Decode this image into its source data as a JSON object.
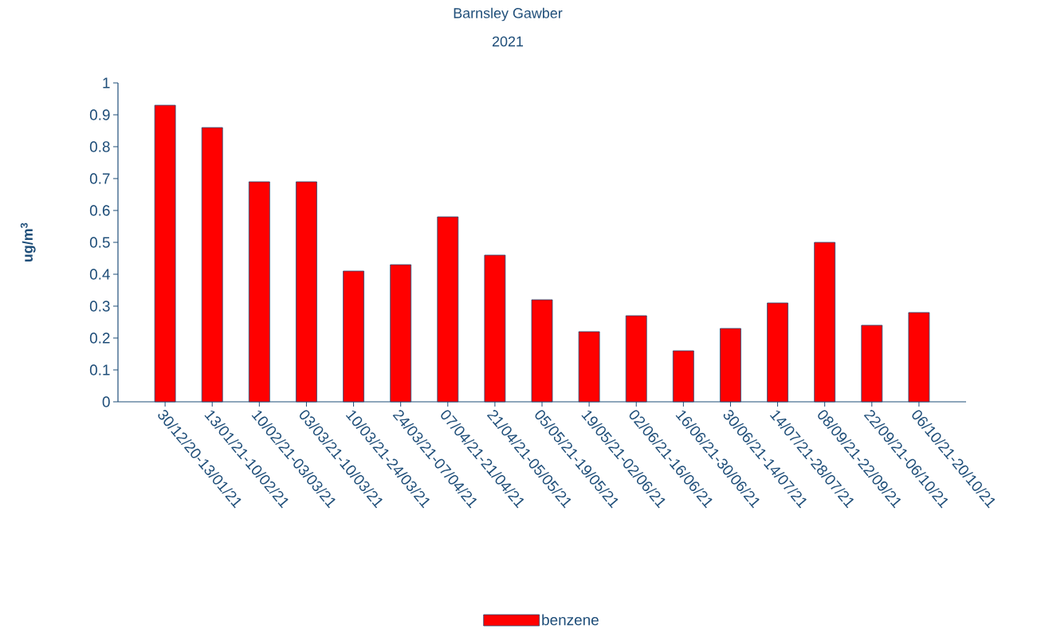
{
  "chart_data": {
    "type": "bar",
    "title": "Barnsley Gawber",
    "subtitle": "2021",
    "ylabel": "ug/m$^{3}$",
    "categories": [
      "30/12/20-13/01/21",
      "13/01/21-10/02/21",
      "10/02/21-03/03/21",
      "03/03/21-10/03/21",
      "10/03/21-24/03/21",
      "24/03/21-07/04/21",
      "07/04/21-21/04/21",
      "21/04/21-05/05/21",
      "05/05/21-19/05/21",
      "19/05/21-02/06/21",
      "02/06/21-16/06/21",
      "16/06/21-30/06/21",
      "30/06/21-14/07/21",
      "14/07/21-28/07/21",
      "08/09/21-22/09/21",
      "22/09/21-06/10/21",
      "06/10/21-20/10/21"
    ],
    "series": [
      {
        "name": "benzene",
        "color": "#ff0000",
        "values": [
          0.93,
          0.86,
          0.69,
          0.69,
          0.41,
          0.43,
          0.58,
          0.46,
          0.32,
          0.22,
          0.27,
          0.16,
          0.23,
          0.31,
          0.5,
          0.24,
          0.28
        ]
      }
    ],
    "ylim": [
      0,
      1
    ],
    "yticks": [
      0,
      0.1,
      0.2,
      0.3,
      0.4,
      0.5,
      0.6,
      0.7,
      0.8,
      0.9,
      1
    ],
    "grid": false,
    "legend": "bottom"
  }
}
